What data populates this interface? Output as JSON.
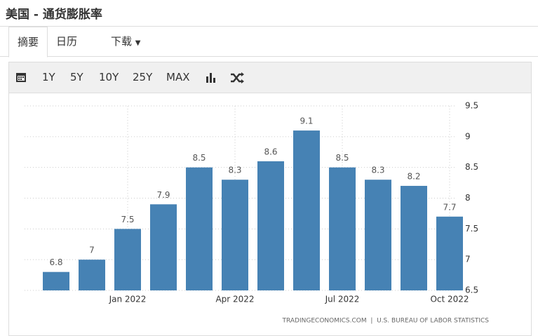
{
  "header": {
    "title": "美国 - 通货膨胀率"
  },
  "tabs": [
    "摘要",
    "日历",
    "下载"
  ],
  "toolbar": [
    "1Y",
    "5Y",
    "10Y",
    "25Y",
    "MAX"
  ],
  "chart_data": {
    "type": "bar",
    "categories": [
      null,
      null,
      "Jan 2022",
      null,
      null,
      "Apr 2022",
      null,
      null,
      "Jul 2022",
      null,
      null,
      "Oct 2022"
    ],
    "values": [
      6.8,
      7,
      7.5,
      7.9,
      8.5,
      8.3,
      8.6,
      9.1,
      8.5,
      8.3,
      8.2,
      7.7
    ],
    "color": "#4682b4",
    "ylim": [
      6.5,
      9.5
    ],
    "yticks": [
      6.5,
      7,
      7.5,
      8,
      8.5,
      9,
      9.5
    ],
    "grid": true,
    "source": "TRADINGECONOMICS.COM  |  U.S. BUREAU OF LABOR STATISTICS"
  }
}
